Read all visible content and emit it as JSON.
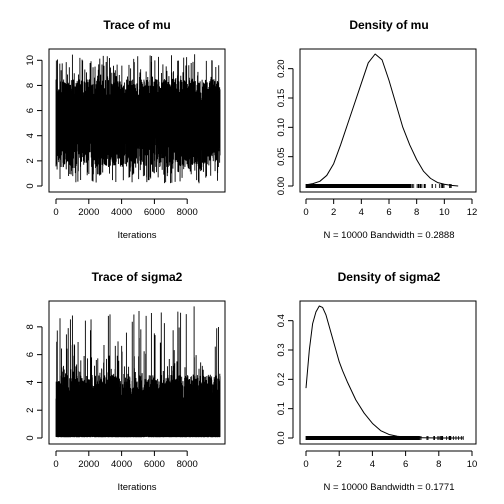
{
  "chart_data": [
    {
      "id": "trace-mu",
      "type": "line",
      "title": "Trace of mu",
      "xlabel": "Iterations",
      "ylabel": "",
      "xlim": [
        0,
        10000
      ],
      "ylim": [
        0,
        10.5
      ],
      "xticks": [
        0,
        2000,
        4000,
        6000,
        8000
      ],
      "yticks": [
        0,
        2,
        4,
        6,
        8,
        10
      ],
      "n_iterations": 10000,
      "center": 5.0,
      "typical_range": [
        1.5,
        8.5
      ],
      "extreme_range": [
        0.2,
        10.5
      ],
      "series": [
        {
          "values": "MCMC trace of mu, 10000 iterations, fluctuating around 5 between about 0.2 and 10.5"
        }
      ]
    },
    {
      "id": "density-mu",
      "type": "line",
      "title": "Density of mu",
      "xlabel": "N = 10000   Bandwidth = 0.2888",
      "ylabel": "",
      "xlim": [
        0,
        12
      ],
      "ylim": [
        0,
        0.225
      ],
      "xticks": [
        0,
        2,
        4,
        6,
        8,
        10,
        12
      ],
      "yticks": [
        0.0,
        0.05,
        0.1,
        0.15,
        0.2
      ],
      "ytick_labels": [
        "0.00",
        "0.05",
        "0.10",
        "0.15",
        "0.20"
      ],
      "x": [
        0.0,
        0.5,
        1.0,
        1.5,
        2.0,
        2.5,
        3.0,
        3.5,
        4.0,
        4.5,
        5.0,
        5.5,
        6.0,
        6.5,
        7.0,
        7.5,
        8.0,
        8.5,
        9.0,
        9.5,
        10.0,
        10.5,
        11.0
      ],
      "y": [
        0.002,
        0.004,
        0.008,
        0.018,
        0.038,
        0.07,
        0.105,
        0.14,
        0.175,
        0.21,
        0.225,
        0.215,
        0.18,
        0.14,
        0.1,
        0.07,
        0.045,
        0.025,
        0.013,
        0.006,
        0.003,
        0.001,
        0.0
      ],
      "rug_range": [
        0.0,
        10.5
      ]
    },
    {
      "id": "trace-sigma2",
      "type": "line",
      "title": "Trace of sigma2",
      "xlabel": "Iterations",
      "ylabel": "",
      "xlim": [
        0,
        10000
      ],
      "ylim": [
        0,
        9.5
      ],
      "xticks": [
        0,
        2000,
        4000,
        6000,
        8000
      ],
      "yticks": [
        0,
        2,
        4,
        6,
        8
      ],
      "n_iterations": 10000,
      "center": 1.2,
      "typical_range": [
        0.1,
        4.5
      ],
      "extreme_range": [
        0.05,
        9.5
      ],
      "series": [
        {
          "values": "MCMC trace of sigma2, 10000 iterations, right-skewed around 1 with spikes up to about 9.5"
        }
      ]
    },
    {
      "id": "density-sigma2",
      "type": "line",
      "title": "Density of sigma2",
      "xlabel": "N = 10000   Bandwidth = 0.1771",
      "ylabel": "",
      "xlim": [
        0,
        10
      ],
      "ylim": [
        0,
        0.45
      ],
      "xticks": [
        0,
        2,
        4,
        6,
        8,
        10
      ],
      "yticks": [
        0.0,
        0.1,
        0.2,
        0.3,
        0.4
      ],
      "ytick_labels": [
        "0.0",
        "0.1",
        "0.2",
        "0.3",
        "0.4"
      ],
      "x": [
        0.0,
        0.2,
        0.4,
        0.6,
        0.8,
        1.0,
        1.2,
        1.4,
        1.6,
        1.8,
        2.0,
        2.2,
        2.5,
        3.0,
        3.5,
        4.0,
        4.5,
        5.0,
        5.5,
        6.0,
        7.0,
        8.0,
        9.0,
        9.5
      ],
      "y": [
        0.17,
        0.3,
        0.39,
        0.43,
        0.45,
        0.445,
        0.42,
        0.38,
        0.34,
        0.3,
        0.26,
        0.23,
        0.19,
        0.13,
        0.085,
        0.05,
        0.025,
        0.012,
        0.006,
        0.003,
        0.001,
        0.0,
        0.0,
        0.0
      ],
      "rug_range": [
        0.0,
        9.5
      ]
    }
  ]
}
